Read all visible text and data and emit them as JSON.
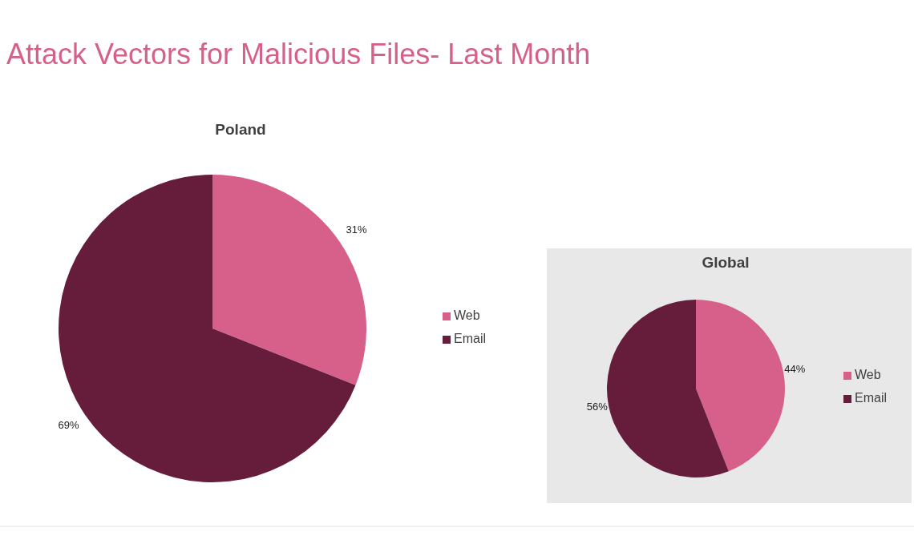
{
  "chart_data": [
    {
      "type": "other",
      "title": "Attack Vectors for Malicious Files- Last Month"
    },
    {
      "type": "pie",
      "title": "Poland",
      "categories": [
        "Web",
        "Email"
      ],
      "values": [
        31,
        69
      ],
      "value_labels": [
        "31%",
        "69%"
      ],
      "colors": [
        "#d6608a",
        "#661d3c"
      ],
      "legend": "right"
    },
    {
      "type": "pie",
      "title": "Global",
      "categories": [
        "Web",
        "Email"
      ],
      "values": [
        44,
        56
      ],
      "value_labels": [
        "44%",
        "56%"
      ],
      "colors": [
        "#d6608a",
        "#661d3c"
      ],
      "legend": "right"
    }
  ]
}
